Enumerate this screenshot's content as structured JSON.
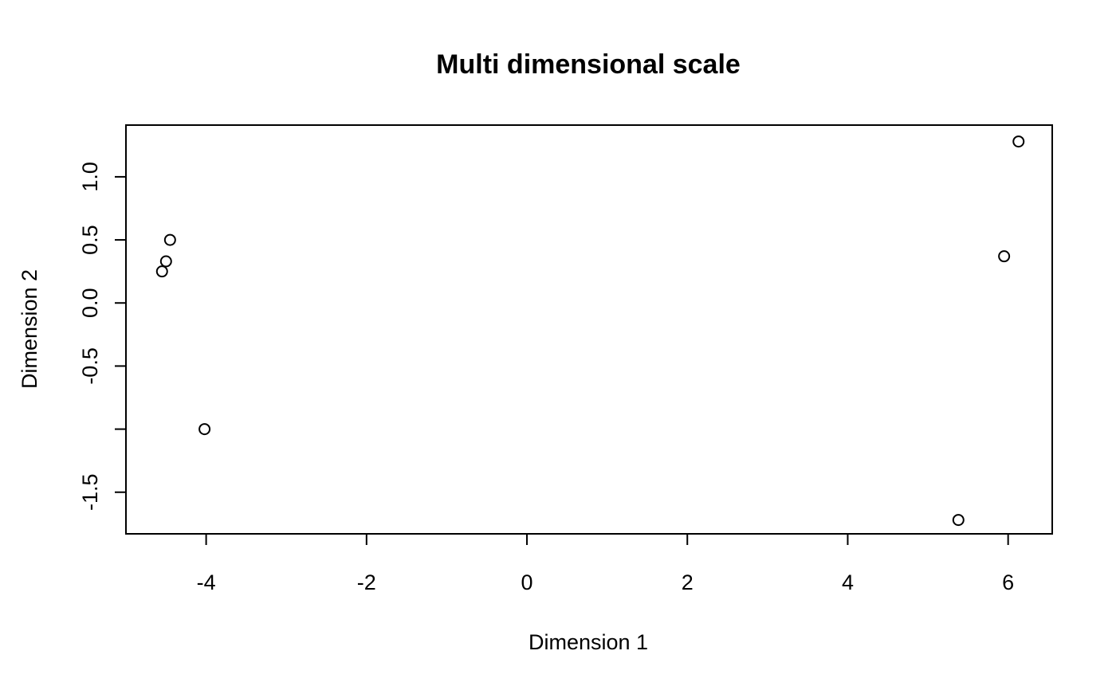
{
  "chart_data": {
    "type": "scatter",
    "title": "Multi dimensional scale",
    "xlabel": "Dimension 1",
    "ylabel": "Dimension 2",
    "xlim": [
      -5.0,
      6.55
    ],
    "ylim": [
      -1.83,
      1.41
    ],
    "x_ticks": [
      -4,
      -2,
      0,
      2,
      4,
      6
    ],
    "y_ticks": [
      -1.5,
      -0.5,
      0.0,
      0.5,
      1.0
    ],
    "y_ticks_unlabeled": [
      -1.0
    ],
    "grid": false,
    "legend": "none",
    "marker": "open-circle",
    "points": [
      {
        "x": -4.45,
        "y": 0.5
      },
      {
        "x": -4.5,
        "y": 0.33
      },
      {
        "x": -4.55,
        "y": 0.25
      },
      {
        "x": -4.02,
        "y": -1.0
      },
      {
        "x": 5.38,
        "y": -1.72
      },
      {
        "x": 5.95,
        "y": 0.37
      },
      {
        "x": 6.13,
        "y": 1.28
      }
    ]
  }
}
